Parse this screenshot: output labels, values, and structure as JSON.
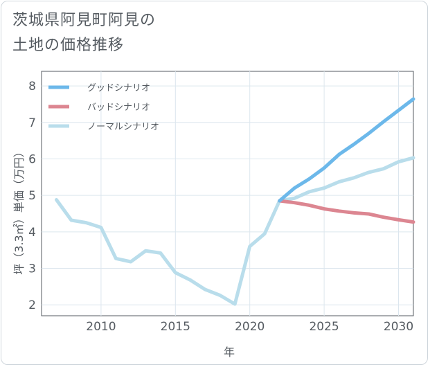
{
  "title_lines": [
    "茨城県阿見町阿見の",
    "土地の価格推移"
  ],
  "chart_data": {
    "type": "line",
    "xlabel": "年",
    "ylabel": "坪（3.3㎡）単価（万円）",
    "xlim": [
      2006,
      2031
    ],
    "ylim": [
      1.7,
      8.4
    ],
    "xticks": [
      2010,
      2015,
      2020,
      2025,
      2030
    ],
    "yticks": [
      2,
      3,
      4,
      5,
      6,
      7,
      8
    ],
    "grid": true,
    "legend_position": "top-left",
    "series": [
      {
        "name": "グッドシナリオ",
        "color": "#6cb8ea",
        "x": [
          2022,
          2023,
          2024,
          2025,
          2026,
          2027,
          2028,
          2029,
          2030,
          2031
        ],
        "values": [
          4.85,
          5.2,
          5.45,
          5.75,
          6.12,
          6.4,
          6.7,
          7.02,
          7.33,
          7.64
        ]
      },
      {
        "name": "バッドシナリオ",
        "color": "#dc8691",
        "x": [
          2022,
          2023,
          2024,
          2025,
          2026,
          2027,
          2028,
          2029,
          2030,
          2031
        ],
        "values": [
          4.85,
          4.8,
          4.73,
          4.63,
          4.57,
          4.52,
          4.49,
          4.4,
          4.33,
          4.27
        ]
      },
      {
        "name": "ノーマルシナリオ",
        "color": "#b9ddeb",
        "x": [
          2007,
          2008,
          2009,
          2010,
          2011,
          2012,
          2013,
          2014,
          2015,
          2016,
          2017,
          2018,
          2019,
          2020,
          2021,
          2022,
          2023,
          2024,
          2025,
          2026,
          2027,
          2028,
          2029,
          2030,
          2031
        ],
        "values": [
          4.88,
          4.32,
          4.25,
          4.12,
          3.27,
          3.18,
          3.48,
          3.42,
          2.88,
          2.68,
          2.42,
          2.26,
          2.02,
          3.6,
          3.95,
          4.85,
          4.92,
          5.1,
          5.2,
          5.37,
          5.48,
          5.63,
          5.73,
          5.92,
          6.03
        ]
      }
    ]
  }
}
